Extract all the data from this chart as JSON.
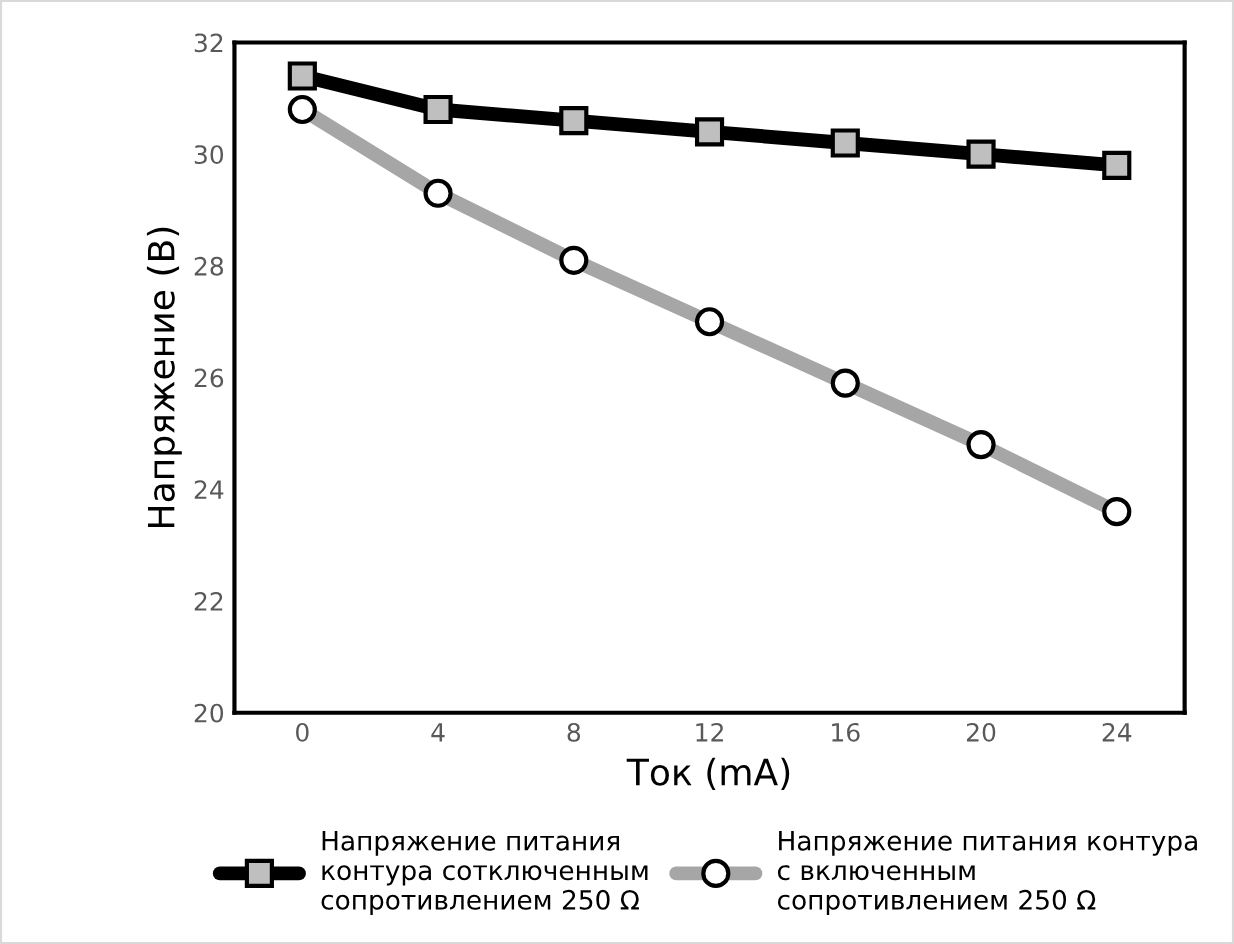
{
  "chart_data": {
    "type": "line",
    "xlabel": "Ток (mA)",
    "ylabel": "Напряжение (B)",
    "categories": [
      "0",
      "4",
      "8",
      "12",
      "16",
      "20",
      "24"
    ],
    "series": [
      {
        "name": "Напряжение питания\nконтура сотключенным\nсопротивлением 250 Ω",
        "color": "#000000",
        "marker": "square",
        "values": [
          31.4,
          30.8,
          30.6,
          30.4,
          30.2,
          30.0,
          29.8
        ]
      },
      {
        "name": "Напряжение питания контура\nс включенным\nсопротивлением 250 Ω",
        "color": "#a6a6a6",
        "marker": "circle",
        "values": [
          30.8,
          29.3,
          28.1,
          27.0,
          25.9,
          24.8,
          23.6
        ]
      }
    ],
    "ylim": [
      20,
      32
    ],
    "yticks": [
      20,
      22,
      24,
      26,
      28,
      30,
      32
    ],
    "legend": "bottom",
    "grid": false,
    "line_style": "solid"
  }
}
